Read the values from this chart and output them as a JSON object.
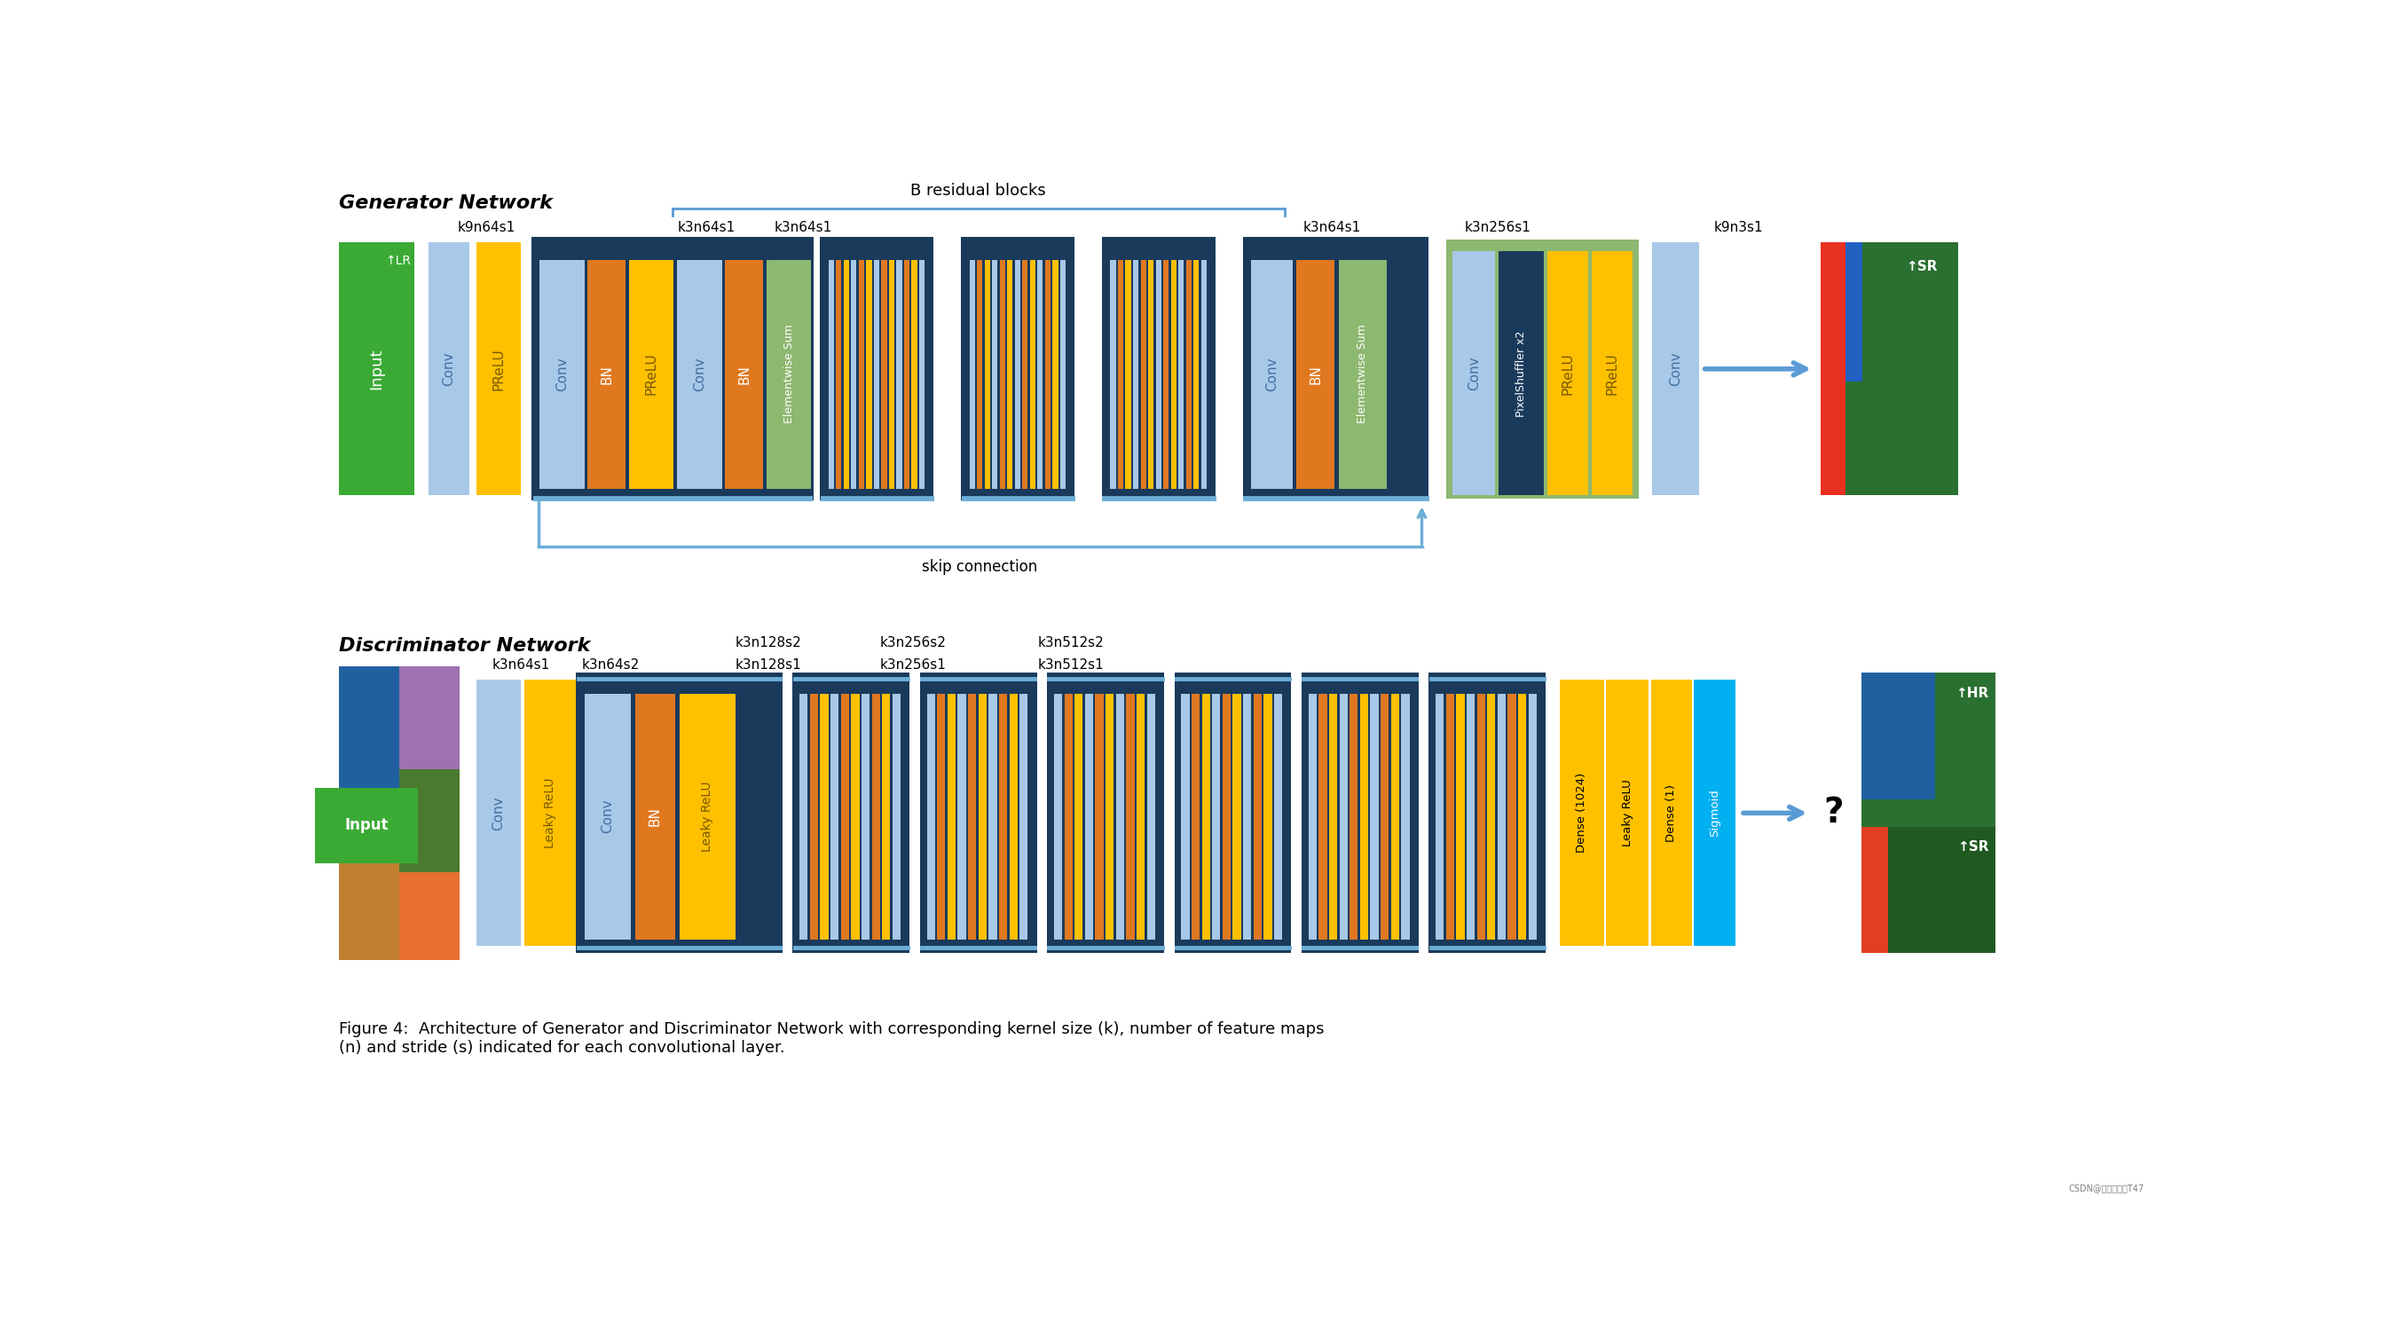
{
  "bg_color": "#ffffff",
  "gen_title": "Generator Network",
  "disc_title": "Discriminator Network",
  "b_residual_label": "B residual blocks",
  "skip_connection_label": "skip connection",
  "caption": "Figure 4:  Architecture of Generator and Discriminator Network with corresponding kernel size (k), number of feature maps\n(n) and stride (s) indicated for each convolutional layer.",
  "colors": {
    "green": "#3aaa35",
    "light_blue": "#a8c8e8",
    "med_blue": "#5b9bd5",
    "dark_blue": "#1f4e79",
    "navy": "#1a3a5c",
    "orange": "#e07820",
    "yellow": "#ffc000",
    "yellow_text": "#7a5a00",
    "light_green": "#8db870",
    "green_container": "#8db870",
    "cyan": "#00b0f0",
    "gray": "#808080",
    "white": "#ffffff",
    "black": "#000000",
    "conv_blue": "#7bafd4",
    "skip_blue": "#6baed6"
  }
}
